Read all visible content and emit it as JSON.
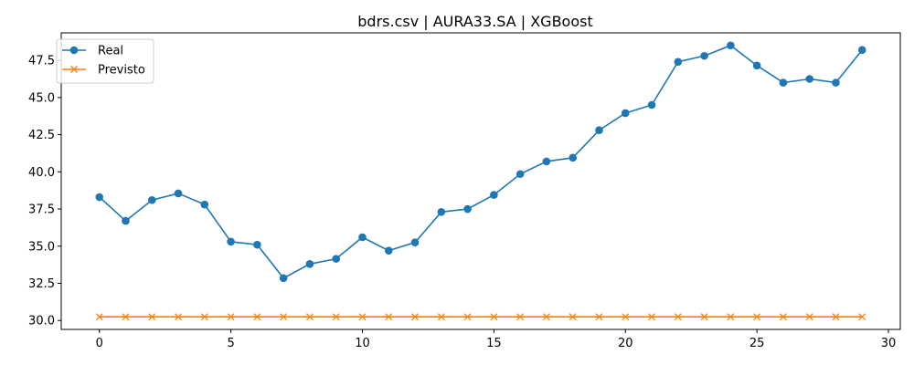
{
  "chart_data": {
    "type": "line",
    "title": "bdrs.csv | AURA33.SA | XGBoost",
    "xlabel": "",
    "ylabel": "",
    "x": [
      0,
      1,
      2,
      3,
      4,
      5,
      6,
      7,
      8,
      9,
      10,
      11,
      12,
      13,
      14,
      15,
      16,
      17,
      18,
      19,
      20,
      21,
      22,
      23,
      24,
      25,
      26,
      27,
      28,
      29
    ],
    "xlim": [
      -1.45,
      30.45
    ],
    "ylim": [
      29.4,
      49.35
    ],
    "x_ticks": [
      0,
      5,
      10,
      15,
      20,
      25,
      30
    ],
    "x_tick_labels": [
      "0",
      "5",
      "10",
      "15",
      "20",
      "25",
      "30"
    ],
    "y_ticks": [
      30.0,
      32.5,
      35.0,
      37.5,
      40.0,
      42.5,
      45.0,
      47.5
    ],
    "y_tick_labels": [
      "30.0",
      "32.5",
      "35.0",
      "37.5",
      "40.0",
      "42.5",
      "45.0",
      "47.5"
    ],
    "grid": false,
    "legend_position": "top-left",
    "series": [
      {
        "name": "Real",
        "color": "#1f77b4",
        "marker": "circle",
        "values": [
          38.3,
          36.7,
          38.1,
          38.55,
          37.8,
          35.3,
          35.1,
          32.85,
          33.8,
          34.15,
          35.6,
          34.7,
          35.25,
          37.3,
          37.5,
          38.45,
          39.85,
          40.7,
          40.95,
          42.8,
          43.95,
          44.5,
          47.4,
          47.8,
          48.5,
          47.15,
          46.0,
          46.25,
          46.0,
          48.2
        ]
      },
      {
        "name": "Previsto",
        "color": "#ff7f0e",
        "marker": "x",
        "values": [
          30.25,
          30.25,
          30.25,
          30.25,
          30.25,
          30.25,
          30.25,
          30.25,
          30.25,
          30.25,
          30.25,
          30.25,
          30.25,
          30.25,
          30.25,
          30.25,
          30.25,
          30.25,
          30.25,
          30.25,
          30.25,
          30.25,
          30.25,
          30.25,
          30.25,
          30.25,
          30.25,
          30.25,
          30.25,
          30.25
        ]
      }
    ]
  }
}
